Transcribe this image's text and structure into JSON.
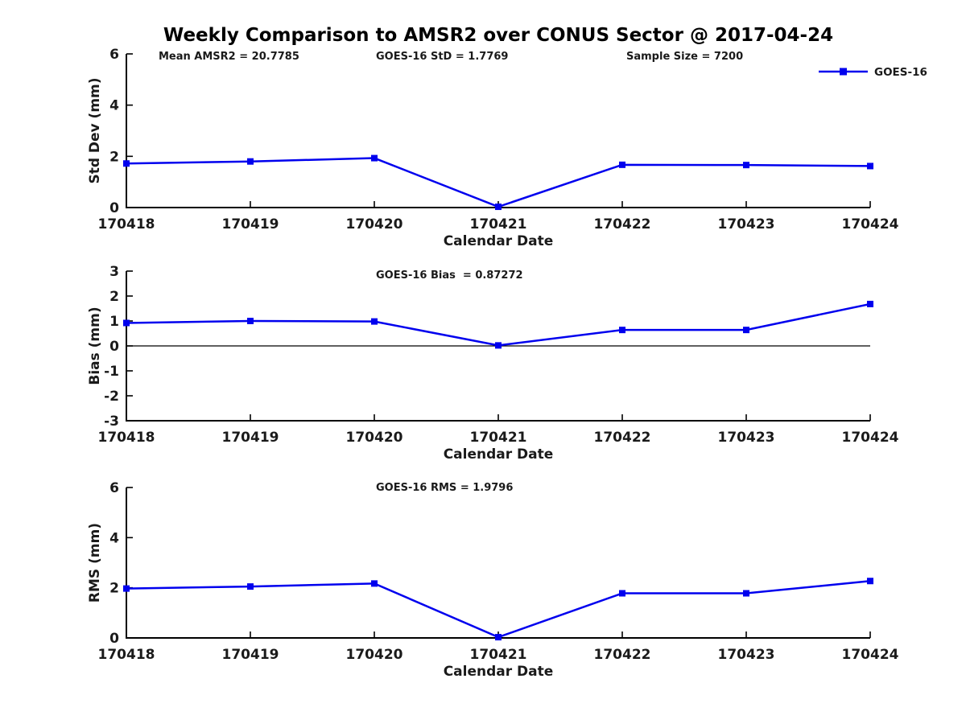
{
  "title": "Weekly Comparison to AMSR2 over CONUS Sector @ 2017-04-24",
  "x_axis": {
    "label": "Calendar Date",
    "categories": [
      "170418",
      "170419",
      "170420",
      "170421",
      "170422",
      "170423",
      "170424"
    ]
  },
  "legend": {
    "label": "GOES-16"
  },
  "colors": {
    "series": "#0000ee",
    "axis": "#000000",
    "tick_text": "#1a1a1a",
    "annotation_text": "#1a1a1a",
    "zero_line": "#000000"
  },
  "chart_data": {
    "type": "line",
    "title": "Weekly Comparison to AMSR2 over CONUS Sector @ 2017-04-24",
    "x": [
      "170418",
      "170419",
      "170420",
      "170421",
      "170422",
      "170423",
      "170424"
    ],
    "xlabel": "Calendar Date",
    "grid": false,
    "legend_position": "top-right",
    "subplots": [
      {
        "name": "std-dev-panel",
        "ylabel": "Std Dev (mm)",
        "ylim": [
          0,
          6
        ],
        "yticks": [
          0,
          2,
          4,
          6
        ],
        "annotations": [
          "Mean AMSR2 = 20.7785",
          "GOES-16 StD = 1.7769",
          "Sample Size = 7200"
        ],
        "show_legend": true,
        "zero_line": false,
        "series": [
          {
            "name": "GOES-16",
            "marker": "square",
            "values": [
              1.72,
              1.8,
              1.93,
              0.03,
              1.67,
              1.66,
              1.62
            ]
          }
        ]
      },
      {
        "name": "bias-panel",
        "ylabel": "Bias (mm)",
        "ylim": [
          -3,
          3
        ],
        "yticks": [
          -3,
          -2,
          -1,
          0,
          1,
          2,
          3
        ],
        "annotations": [
          "GOES-16 Bias  = 0.87272"
        ],
        "show_legend": false,
        "zero_line": true,
        "series": [
          {
            "name": "GOES-16",
            "marker": "square",
            "values": [
              0.92,
              1.0,
              0.98,
              0.02,
              0.64,
              0.64,
              1.68
            ]
          }
        ]
      },
      {
        "name": "rms-panel",
        "ylabel": "RMS (mm)",
        "ylim": [
          0,
          6
        ],
        "yticks": [
          0,
          2,
          4,
          6
        ],
        "annotations": [
          "GOES-16 RMS = 1.9796"
        ],
        "show_legend": false,
        "zero_line": false,
        "series": [
          {
            "name": "GOES-16",
            "marker": "square",
            "values": [
              1.97,
              2.05,
              2.17,
              0.03,
              1.78,
              1.78,
              2.27
            ]
          }
        ]
      }
    ]
  }
}
